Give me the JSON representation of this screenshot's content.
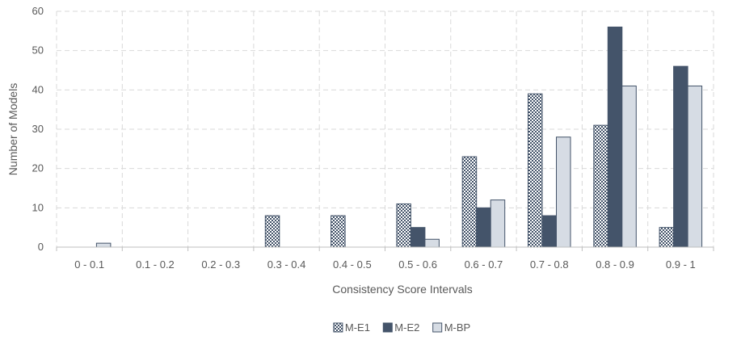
{
  "chart_data": {
    "type": "bar",
    "title": "",
    "xlabel": "Consistency Score Intervals",
    "ylabel": "Number of Models",
    "ylim": [
      0,
      60
    ],
    "yticks": [
      0,
      10,
      20,
      30,
      40,
      50,
      60
    ],
    "grid": true,
    "legend_position": "bottom",
    "categories": [
      "0 - 0.1",
      "0.1 - 0.2",
      "0.2 - 0.3",
      "0.3 - 0.4",
      "0.4 - 0.5",
      "0.5 - 0.6",
      "0.6 - 0.7",
      "0.7 - 0.8",
      "0.8 - 0.9",
      "0.9 - 1"
    ],
    "series": [
      {
        "name": "M-E1",
        "values": [
          0,
          0,
          0,
          8,
          8,
          11,
          23,
          39,
          31,
          5
        ],
        "color": "#d9dee6",
        "pattern": "checker"
      },
      {
        "name": "M-E2",
        "values": [
          0,
          0,
          0,
          0,
          0,
          5,
          10,
          8,
          56,
          46
        ],
        "color": "#44546a",
        "pattern": "solid"
      },
      {
        "name": "M-BP",
        "values": [
          1,
          0,
          0,
          0,
          0,
          2,
          12,
          28,
          41,
          41
        ],
        "color": "#d6dce4",
        "pattern": "solid"
      }
    ]
  }
}
